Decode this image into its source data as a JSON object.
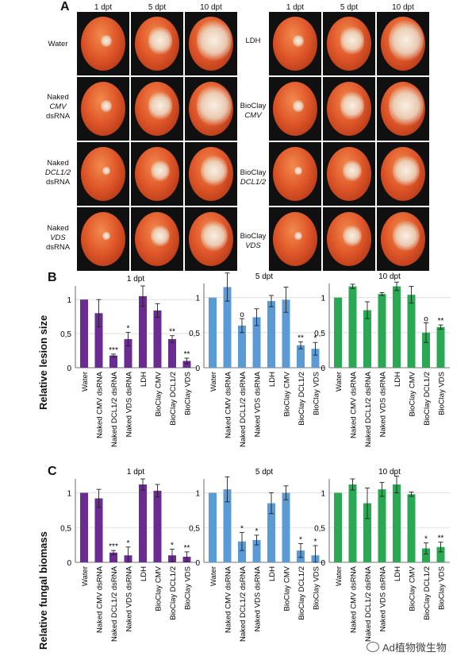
{
  "panels": {
    "a": "A",
    "b": "B",
    "c": "C"
  },
  "panelA": {
    "time_points": [
      "1 dpt",
      "5 dpt",
      "10 dpt"
    ],
    "left_rows": [
      {
        "line1": "Water",
        "line2": "",
        "line3": ""
      },
      {
        "line1": "Naked",
        "line2": "CMV",
        "line3": "dsRNA"
      },
      {
        "line1": "Naked",
        "line2": "DCL1/2",
        "line3": "dsRNA"
      },
      {
        "line1": "Naked",
        "line2": "VDS",
        "line3": "dsRNA"
      }
    ],
    "right_rows": [
      {
        "line1": "LDH",
        "line2": ""
      },
      {
        "line1": "BioClay",
        "line2": "CMV"
      },
      {
        "line1": "BioClay",
        "line2": "DCL1/2"
      },
      {
        "line1": "BioClay",
        "line2": "VDS"
      }
    ]
  },
  "watermark": "Ad植物微生物",
  "chart_data": [
    {
      "type": "bar",
      "panel": "B",
      "title": "1 dpt",
      "ylabel": "Relative lesion size",
      "ylim": [
        0,
        1.2
      ],
      "yticks": [
        "0",
        "0,5",
        "1"
      ],
      "color": "#6a2c91",
      "categories": [
        "Water",
        "Naked CMV dsRNA",
        "Naked DCL1/2 dsRNA",
        "Naked VDS dsRNA",
        "LDH",
        "BioClay CMV",
        "BioClay DCL1/2",
        "BioClay VDS"
      ],
      "values": [
        1.0,
        0.8,
        0.18,
        0.42,
        1.05,
        0.84,
        0.42,
        0.1
      ],
      "errors": [
        0,
        0.2,
        0.02,
        0.1,
        0.15,
        0.1,
        0.05,
        0.04
      ],
      "marks": [
        "",
        "",
        "***",
        "*",
        "",
        "",
        "**",
        "**"
      ]
    },
    {
      "type": "bar",
      "panel": "B",
      "title": "5 dpt",
      "ylabel": "",
      "ylim": [
        0,
        1.2
      ],
      "yticks": [
        "0",
        "0,5",
        "1"
      ],
      "color": "#5b9bd5",
      "categories": [
        "Water",
        "Naked CMV dsRNA",
        "Naked DCL1/2 dsRNA",
        "Naked VDS dsRNA",
        "LDH",
        "BioClay CMV",
        "BioClay DCL1/2",
        "BioClay VDS"
      ],
      "values": [
        1.0,
        1.15,
        0.6,
        0.72,
        0.95,
        0.97,
        0.32,
        0.27
      ],
      "errors": [
        0,
        0.2,
        0.1,
        0.12,
        0.08,
        0.18,
        0.05,
        0.09
      ],
      "marks": [
        "",
        "",
        "o",
        "",
        "",
        "",
        "**",
        "*"
      ]
    },
    {
      "type": "bar",
      "panel": "B",
      "title": "10 dpt",
      "ylabel": "",
      "ylim": [
        0,
        1.2
      ],
      "yticks": [
        "0",
        "0,5",
        "1"
      ],
      "color": "#2aa853",
      "categories": [
        "Water",
        "Naked CMV dsRNA",
        "Naked DCL1/2 dsRNA",
        "Naked VDS dsRNA",
        "LDH",
        "BioClay CMV",
        "BioClay DCL1/2",
        "BioClay VDS"
      ],
      "values": [
        1.0,
        1.16,
        0.82,
        1.05,
        1.16,
        1.04,
        0.5,
        0.58
      ],
      "errors": [
        0,
        0.03,
        0.12,
        0.02,
        0.06,
        0.12,
        0.14,
        0.03
      ],
      "marks": [
        "",
        "",
        "",
        "",
        "",
        "",
        "o",
        "**"
      ]
    },
    {
      "type": "bar",
      "panel": "C",
      "title": "1 dpt",
      "ylabel": "Relative fungal biomass",
      "ylim": [
        0,
        1.2
      ],
      "yticks": [
        "0",
        "0,5",
        "1"
      ],
      "color": "#6a2c91",
      "categories": [
        "Water",
        "Naked CMV dsRNA",
        "Naked DCL1/2 dsRNA",
        "Naked VDS dsRNA",
        "LDH",
        "BioClay CMV",
        "BioClay DCL1/2",
        "BioClay VDS"
      ],
      "values": [
        1.0,
        0.92,
        0.14,
        0.1,
        1.12,
        1.03,
        0.1,
        0.08
      ],
      "errors": [
        0,
        0.13,
        0.03,
        0.12,
        0.08,
        0.09,
        0.09,
        0.07
      ],
      "marks": [
        "",
        "",
        "***",
        "*",
        "",
        "",
        "*",
        "**"
      ]
    },
    {
      "type": "bar",
      "panel": "C",
      "title": "5 dpt",
      "ylabel": "",
      "ylim": [
        0,
        1.2
      ],
      "yticks": [
        "0",
        "0,5",
        "1"
      ],
      "color": "#5b9bd5",
      "categories": [
        "Water",
        "Naked CMV dsRNA",
        "Naked DCL1/2 dsRNA",
        "Naked VDS dsRNA",
        "LDH",
        "BioClay CMV",
        "BioClay DCL1/2",
        "BioClay VDS"
      ],
      "values": [
        1.0,
        1.05,
        0.3,
        0.32,
        0.85,
        1.0,
        0.17,
        0.1
      ],
      "errors": [
        0,
        0.18,
        0.13,
        0.07,
        0.15,
        0.1,
        0.1,
        0.14
      ],
      "marks": [
        "",
        "",
        "*",
        "*",
        "",
        "",
        "*",
        "*"
      ]
    },
    {
      "type": "bar",
      "panel": "C",
      "title": "10 dpt",
      "ylabel": "",
      "ylim": [
        0,
        1.2
      ],
      "yticks": [
        "0",
        "0,5",
        "1"
      ],
      "color": "#2aa853",
      "categories": [
        "Water",
        "Naked CMV dsRNA",
        "Naked DCL1/2 dsRNA",
        "Naked VDS dsRNA",
        "LDH",
        "BioClay CMV",
        "BioClay DCL1/2",
        "BioClay VDS"
      ],
      "values": [
        1.0,
        1.12,
        0.85,
        1.05,
        1.12,
        0.98,
        0.2,
        0.22
      ],
      "errors": [
        0,
        0.08,
        0.22,
        0.1,
        0.12,
        0.03,
        0.08,
        0.07
      ],
      "marks": [
        "",
        "",
        "",
        "",
        "",
        "",
        "*",
        "**"
      ]
    }
  ]
}
